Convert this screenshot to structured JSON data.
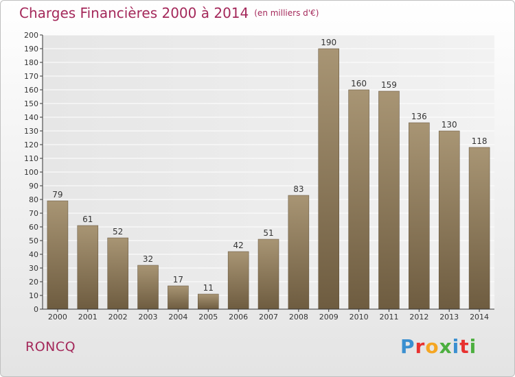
{
  "header": {
    "title": "Charges Financières 2000 à 2014",
    "subtitle": "(en milliers d'€)"
  },
  "commune": "RONCQ",
  "logo": {
    "letters": [
      "P",
      "r",
      "o",
      "x",
      "i",
      "t",
      "i"
    ]
  },
  "chart_data": {
    "type": "bar",
    "title": "Charges Financières 2000 à 2014",
    "subtitle": "(en milliers d'€)",
    "categories": [
      "2000",
      "2001",
      "2002",
      "2003",
      "2004",
      "2005",
      "2006",
      "2007",
      "2008",
      "2009",
      "2010",
      "2011",
      "2012",
      "2013",
      "2014"
    ],
    "values": [
      79,
      61,
      52,
      32,
      17,
      11,
      42,
      51,
      83,
      190,
      160,
      159,
      136,
      130,
      118
    ],
    "xlabel": "",
    "ylabel": "",
    "ylim": [
      0,
      200
    ],
    "ytick_step": 10,
    "grid": true,
    "legend": "none",
    "bar_color": "#8f7b5c"
  }
}
